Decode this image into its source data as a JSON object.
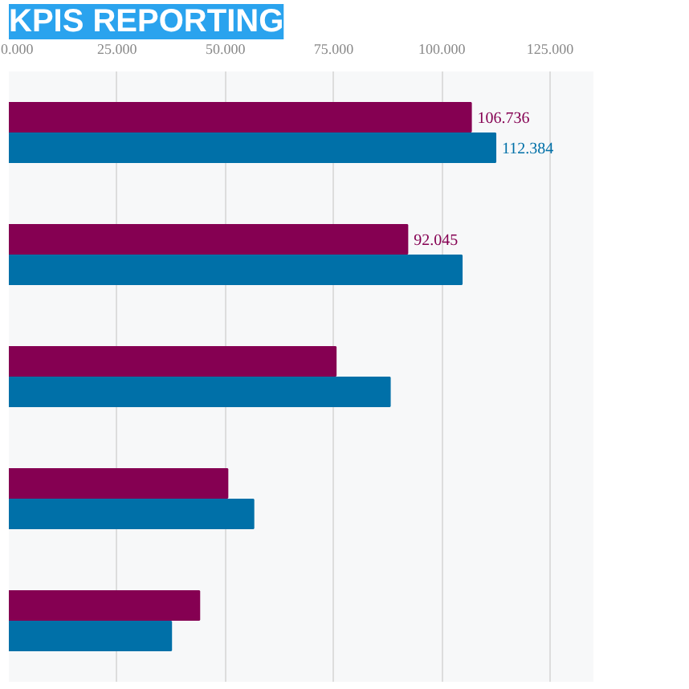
{
  "chart_data": {
    "type": "bar",
    "orientation": "horizontal",
    "title": "KPIS REPORTING",
    "categories": [
      null,
      null,
      null,
      null,
      null
    ],
    "series": [
      {
        "color": "#850052",
        "values": [
          106.736,
          92.045,
          75.5,
          50.5,
          44
        ],
        "value_labels": [
          "106.736",
          "92.045",
          null,
          null,
          null
        ]
      },
      {
        "color": "#0070a8",
        "values": [
          112.384,
          104.6,
          88,
          56.5,
          37.5
        ],
        "value_labels": [
          "112.384",
          null,
          null,
          null,
          null
        ]
      }
    ],
    "xlim": [
      0,
      135
    ],
    "xticks": [
      {
        "value": 0,
        "label": "0.000"
      },
      {
        "value": 25,
        "label": "25.000"
      },
      {
        "value": 50,
        "label": "50.000"
      },
      {
        "value": 75,
        "label": "75.000"
      },
      {
        "value": 100,
        "label": "100.000"
      },
      {
        "value": 125,
        "label": "125.000"
      }
    ],
    "grid": "x"
  }
}
